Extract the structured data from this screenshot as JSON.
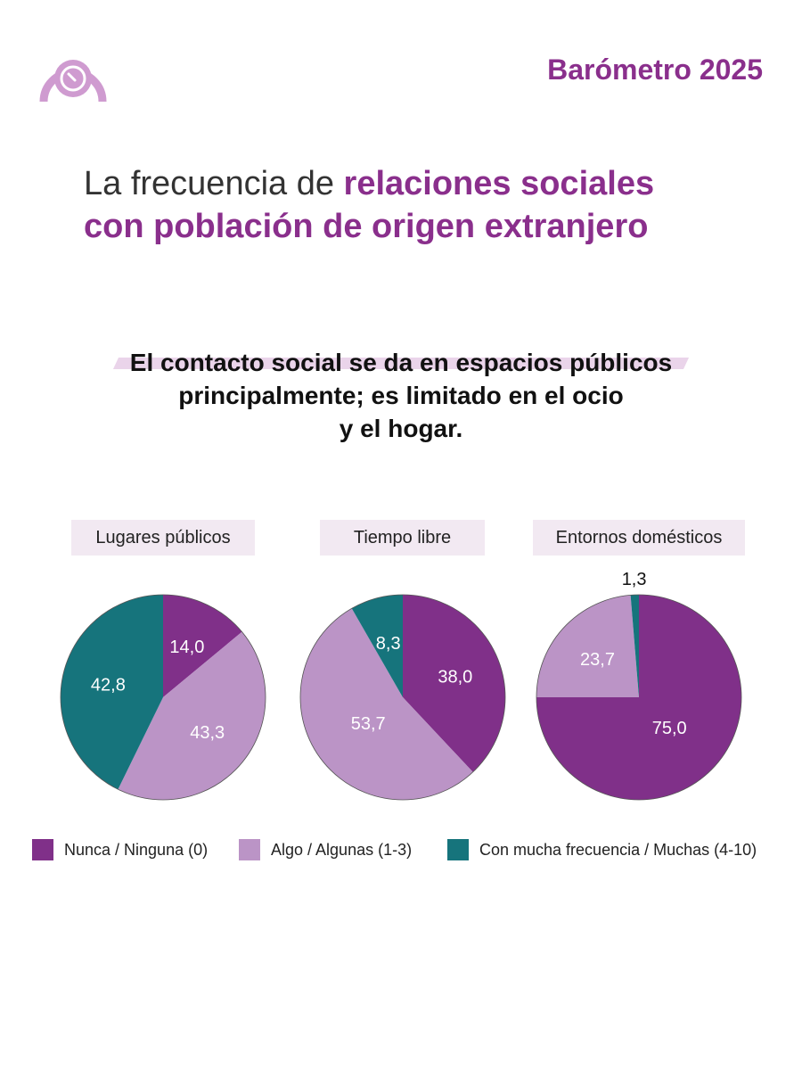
{
  "header": {
    "brand": "Barómetro 2025",
    "logo_icon": "gauge-logo-icon"
  },
  "headline": {
    "plain": "La frecuencia de ",
    "highlight_1": "relaciones sociales",
    "highlight_2": "con población de origen extranjero"
  },
  "subtitle": {
    "line_1": "El contacto social se da en espacios públicos",
    "line_2": "principalmente; es limitado en el ocio",
    "line_3": "y el hogar."
  },
  "colors": {
    "nunca": "#803089",
    "algo": "#bb94c6",
    "mucha": "#16747c",
    "brand": "#8a2f8c",
    "highlight": "#ead4ea"
  },
  "legend": [
    {
      "label": "Nunca / Ninguna (0)",
      "color": "#803089"
    },
    {
      "label": "Algo / Algunas (1-3)",
      "color": "#bb94c6"
    },
    {
      "label": "Con mucha frecuencia / Muchas (4-10)",
      "color": "#16747c"
    }
  ],
  "chart_data": [
    {
      "type": "pie",
      "title": "Lugares públicos",
      "categories": [
        "Nunca / Ninguna (0)",
        "Algo / Algunas (1-3)",
        "Con mucha frecuencia / Muchas (4-10)"
      ],
      "values": [
        14.0,
        43.3,
        42.8
      ],
      "labels": [
        "14,0",
        "43,3",
        "42,8"
      ]
    },
    {
      "type": "pie",
      "title": "Tiempo libre",
      "categories": [
        "Nunca / Ninguna (0)",
        "Algo / Algunas (1-3)",
        "Con mucha frecuencia / Muchas (4-10)"
      ],
      "values": [
        38.0,
        53.7,
        8.3
      ],
      "labels": [
        "38,0",
        "53,7",
        "8,3"
      ]
    },
    {
      "type": "pie",
      "title": "Entornos domésticos",
      "categories": [
        "Nunca / Ninguna (0)",
        "Algo / Algunas (1-3)",
        "Con mucha frecuencia / Muchas (4-10)"
      ],
      "values": [
        75.0,
        23.7,
        1.3
      ],
      "labels": [
        "75,0",
        "23,7",
        "1,3"
      ]
    }
  ]
}
